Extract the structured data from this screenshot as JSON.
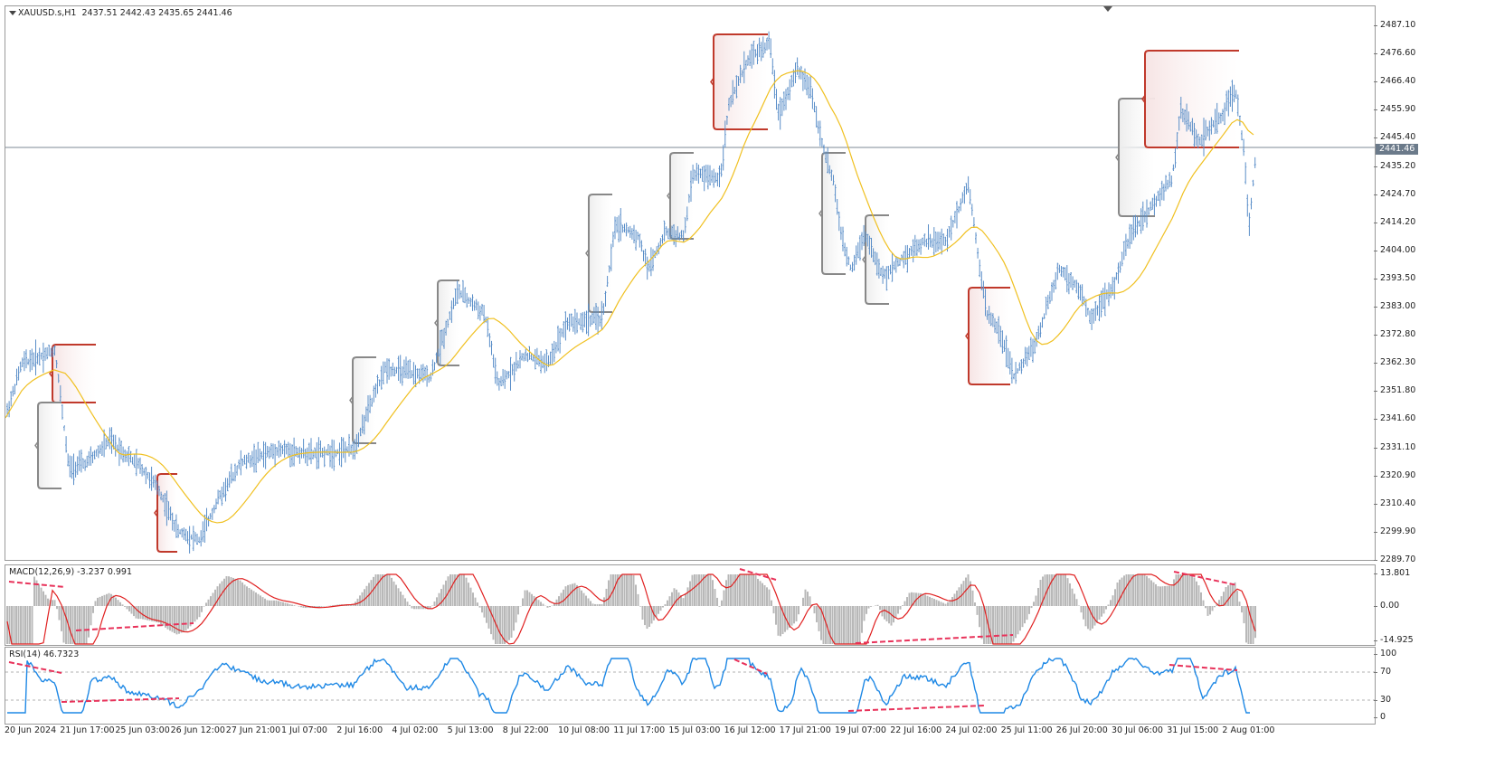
{
  "main": {
    "symbol": "XAUUSD.s,H1",
    "ohlc": "2437.51 2442.43 2435.65 2441.46",
    "current_price": "2441.46",
    "price_ticks": [
      "2487.10",
      "2476.60",
      "2466.40",
      "2455.90",
      "2445.40",
      "2435.20",
      "2424.70",
      "2414.20",
      "2404.00",
      "2393.50",
      "2383.00",
      "2372.80",
      "2362.30",
      "2351.80",
      "2341.60",
      "2331.10",
      "2320.90",
      "2310.40",
      "2299.90",
      "2289.70"
    ]
  },
  "macd": {
    "title": "MACD(12,26,9) -3.237 0.991",
    "ticks": [
      "13.801",
      "0.00",
      "-14.925"
    ]
  },
  "rsi": {
    "title": "RSI(14) 46.7323",
    "ticks": [
      "100",
      "70",
      "30",
      "0"
    ]
  },
  "time_labels": [
    "20 Jun 2024",
    "21 Jun 17:00",
    "25 Jun 03:00",
    "26 Jun 12:00",
    "27 Jun 21:00",
    "1 Jul 07:00",
    "2 Jul 16:00",
    "4 Jul 02:00",
    "5 Jul 13:00",
    "8 Jul 22:00",
    "10 Jul 08:00",
    "11 Jul 17:00",
    "15 Jul 03:00",
    "16 Jul 12:00",
    "17 Jul 21:00",
    "19 Jul 07:00",
    "22 Jul 16:00",
    "24 Jul 02:00",
    "25 Jul 11:00",
    "26 Jul 20:00",
    "30 Jul 06:00",
    "31 Jul 15:00",
    "2 Aug 01:00"
  ],
  "colors": {
    "bar": "#5a8ec8",
    "ma": "#f0c020",
    "price_line": "#7c8a96",
    "macd_hist": "#b8b8b8",
    "macd_signal": "#e02020",
    "rsi_line": "#1e88e5",
    "divergence": "#e8325a",
    "zone_red": "#c0392b",
    "zone_gray": "#888888"
  }
}
